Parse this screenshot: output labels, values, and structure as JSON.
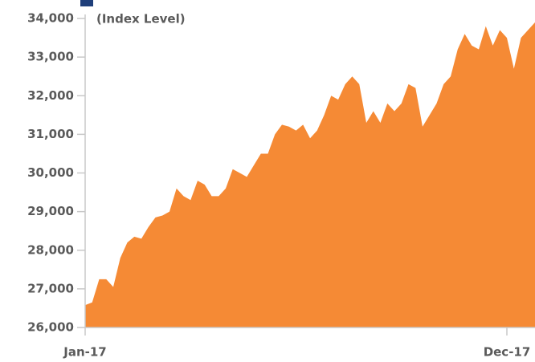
{
  "chart_data": {
    "type": "area",
    "subtitle": "(Index Level)",
    "categories": [
      "Jan-17",
      null,
      null,
      null,
      null,
      null,
      null,
      null,
      null,
      null,
      null,
      null,
      null,
      null,
      null,
      null,
      null,
      null,
      null,
      null,
      null,
      null,
      null,
      null,
      null,
      null,
      null,
      null,
      null,
      null,
      null,
      null,
      null,
      null,
      null,
      null,
      null,
      null,
      null,
      null,
      null,
      null,
      null,
      null,
      null,
      null,
      null,
      null,
      null,
      null,
      null,
      null,
      null,
      null,
      null,
      null,
      null,
      null,
      null,
      null,
      "Dec-17",
      null,
      null,
      null,
      null
    ],
    "values": [
      26580,
      26650,
      27250,
      27250,
      27050,
      27800,
      28200,
      28350,
      28300,
      28600,
      28850,
      28900,
      29000,
      29600,
      29400,
      29300,
      29800,
      29700,
      29400,
      29400,
      29600,
      30100,
      30000,
      29900,
      30200,
      30500,
      30500,
      31000,
      31250,
      31200,
      31100,
      31250,
      30900,
      31100,
      31500,
      32000,
      31900,
      32300,
      32500,
      32300,
      31300,
      31600,
      31300,
      31800,
      31600,
      31800,
      32300,
      32200,
      31200,
      31500,
      31800,
      32300,
      32500,
      33200,
      33600,
      33300,
      33200,
      33800,
      33300,
      33700,
      33500,
      32700,
      33500,
      33700,
      33900
    ],
    "color": "#f58a35",
    "ylim": [
      26000,
      34000
    ],
    "yticks": [
      {
        "value": 26000,
        "label": "26,000"
      },
      {
        "value": 27000,
        "label": "27,000"
      },
      {
        "value": 28000,
        "label": "28,000"
      },
      {
        "value": 29000,
        "label": "29,000"
      },
      {
        "value": 30000,
        "label": "30,000"
      },
      {
        "value": 31000,
        "label": "31,000"
      },
      {
        "value": 32000,
        "label": "32,000"
      },
      {
        "value": 33000,
        "label": "33,000"
      },
      {
        "value": 34000,
        "label": "34,000"
      }
    ]
  }
}
